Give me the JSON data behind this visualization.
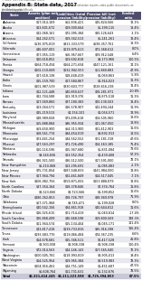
{
  "title": "Appendix B: State data, 2017",
  "subtitle": "$ (thousands)",
  "columns": [
    "State",
    "Assets (plan net\nposition)",
    "Liabilities (total\npension liability)",
    "Pension bill (net\npension liability)",
    "Funded\nratio"
  ],
  "header_bg": "#4d4d6b",
  "header_text_color": "#ffffff",
  "alt_row_color": "#e8e8ef",
  "row_color": "#ffffff",
  "total_row_color": "#c8c8d8",
  "title_color": "#000000",
  "rows": [
    [
      "Alabama",
      "$17,014,169",
      "$62,836,421",
      "$45,824,566",
      "13.1%"
    ],
    [
      "Alaska",
      "$13,601,672",
      "$19,000,664",
      "$5,399,115",
      "18.4%"
    ],
    [
      "Arizona",
      "$42,068,161",
      "$72,095,384",
      "$30,126,643",
      "-3.1%"
    ],
    [
      "Arkansas",
      "$14,262,571",
      "$19,342,513",
      "$5,241,261",
      "13.4%"
    ],
    [
      "California",
      "$536,975,819",
      "$913,333,579",
      "$698,357,761",
      "18.3%"
    ],
    [
      "Colorado",
      "$46,607,001",
      "$119,975,613",
      "$73,368,612",
      "8.0%"
    ],
    [
      "Connecticut",
      "$27,055,119",
      "$66,967,667",
      "$39,912,548",
      "6.4%"
    ],
    [
      "Delaware",
      "$10,618,852",
      "$19,692,818",
      "$9,173,966",
      "100.5%"
    ],
    [
      "Florida",
      "$164,718,494",
      "$164,271,694",
      "$447,121,161",
      "74.1%"
    ],
    [
      "Georgia",
      "$102,110,668",
      "$132,942,553",
      "$51,840,883",
      "47.9%"
    ],
    [
      "Hawaii",
      "$17,618,138",
      "$18,448,419",
      "$1,069,863",
      "-5.8%"
    ],
    [
      "Idaho",
      "$15,159,700",
      "$17,584,867",
      "$1,914,023",
      "11.3%"
    ],
    [
      "Illinois",
      "$101,987,539",
      "$330,603,777",
      "$228,616,238",
      "13.4%"
    ],
    [
      "Indiana",
      "$12,121,448",
      "$40,850,637",
      "$28,281,971",
      "-10.8%"
    ],
    [
      "Iowa",
      "$32,744,588",
      "$13,919,376",
      "$3,875,518",
      "11.3%"
    ],
    [
      "Kansas",
      "$17,049,860",
      "$37,180,383",
      "$20,130,503",
      "13.4%"
    ],
    [
      "Kentucky",
      "$13,044,571",
      "$16,578,907",
      "$42,494,244",
      "11.9%"
    ],
    [
      "Louisiana",
      "$15,219,513",
      "$4,154,101",
      "$1,054,571",
      "13.9%"
    ],
    [
      "Maryland",
      "$48,989,658",
      "$73,495,618",
      "$24,505,960",
      "18.6%"
    ],
    [
      "Massachusetts",
      "$55,888,884",
      "$96,955,934",
      "$41,067,050",
      "18.8%"
    ],
    [
      "Michigan",
      "$69,450,900",
      "$64,313,900",
      "$31,412,903",
      "11.6%"
    ],
    [
      "Minnesota",
      "$68,561,774",
      "$94,454,019",
      "$9,892,913",
      "18.5%"
    ],
    [
      "Mississippi",
      "$23,461,254",
      "$44,562,552",
      "$21,181,318",
      "47.6%"
    ],
    [
      "Missouri",
      "$47,563,297",
      "$71,726,490",
      "$24,163,185",
      "71.4%"
    ],
    [
      "Montana",
      "$10,116,596",
      "$15,947,680",
      "$5,831,084",
      "73.6%"
    ],
    [
      "Nebraska",
      "$9,144,836",
      "$13,552,354",
      "$4,439,408",
      "57.2%"
    ],
    [
      "Nevada",
      "$36,921,500",
      "$36,512,500",
      "$17,591,000",
      "78.1%"
    ],
    [
      "New Hampshire",
      "$6,210,068",
      "$13,295,691",
      "$5,085,083",
      "-2.1%"
    ],
    [
      "New Jersey",
      "$75,731,854",
      "$187,548,833",
      "$441,984,000",
      "13.8%"
    ],
    [
      "New Mexico",
      "$17,944,794",
      "$32,461,849",
      "$14,517,045",
      "-7.1%"
    ],
    [
      "New York",
      "$106,082,756",
      "$259,871,655",
      "$153,888,879",
      "13.8%"
    ],
    [
      "North Carolina",
      "$87,354,164",
      "$18,378,846",
      "$7,374,764",
      "11.8%"
    ],
    [
      "North Dakota",
      "$3,323,666",
      "$3,723,566",
      "$1,399,852",
      "11.6%"
    ],
    [
      "Ohio",
      "$186,352,853",
      "$28,726,797",
      "$38,949,978",
      "71.9%"
    ],
    [
      "Oklahoma",
      "$67,371,968",
      "$9,745,471",
      "$5,199,028",
      "8.0%"
    ],
    [
      "Pennsylvania",
      "$40,542,156",
      "$34,861,918",
      "$40,644,812",
      "11.6%"
    ],
    [
      "Rhode Island",
      "$16,025,615",
      "$21,714,419",
      "$5,040,814",
      "-17.4%"
    ],
    [
      "South Carolina",
      "$26,868,499",
      "$46,668,598",
      "$19,800,569",
      "138.3%"
    ],
    [
      "South Dakota",
      "$11,944,574",
      "$15,134,404",
      "$3,045,171",
      "141.4%"
    ],
    [
      "Tennessee",
      "$43,817,418",
      "$139,733,816",
      "$95,916,398",
      "116.4%"
    ],
    [
      "Texas",
      "$193,483,776",
      "$119,066,484",
      "$74,367,235",
      "6.6%"
    ],
    [
      "Utah",
      "$14,678,681",
      "$15,346,511",
      "$2,417,528",
      "41.8%"
    ],
    [
      "Vermont",
      "$3,903,938",
      "$3,908,338",
      "$3,908,338",
      "100.4%"
    ],
    [
      "Virginia",
      "$72,014,563",
      "$44,146,143",
      "$17,565,040",
      "72.1%"
    ],
    [
      "Washington",
      "$100,505,781",
      "$118,993,819",
      "$3,905,013",
      "19.4%"
    ],
    [
      "West Virginia",
      "$14,525,954",
      "$19,965,384",
      "$3,519,983",
      "78.3%"
    ],
    [
      "Wisconsin",
      "$104,916,462",
      "$44,751,149",
      "$1,451,687",
      "47.5%"
    ],
    [
      "Wyoming",
      "$6,608,764",
      "$11,731,631",
      "$5,132,676",
      "78.5%"
    ],
    [
      "Total",
      "$2,321,414,245",
      "$4,111,223,598",
      "$1,725,394,853",
      "67.5%"
    ]
  ],
  "total_row_idx": 48,
  "fig_bg": "#ffffff",
  "note1": "Sources: Comprehensive Annual Financial Reports, actuarial valuation reports, state public documents, as provided by plan officials.",
  "note2": "© 2019 The Pew Charitable Trusts"
}
